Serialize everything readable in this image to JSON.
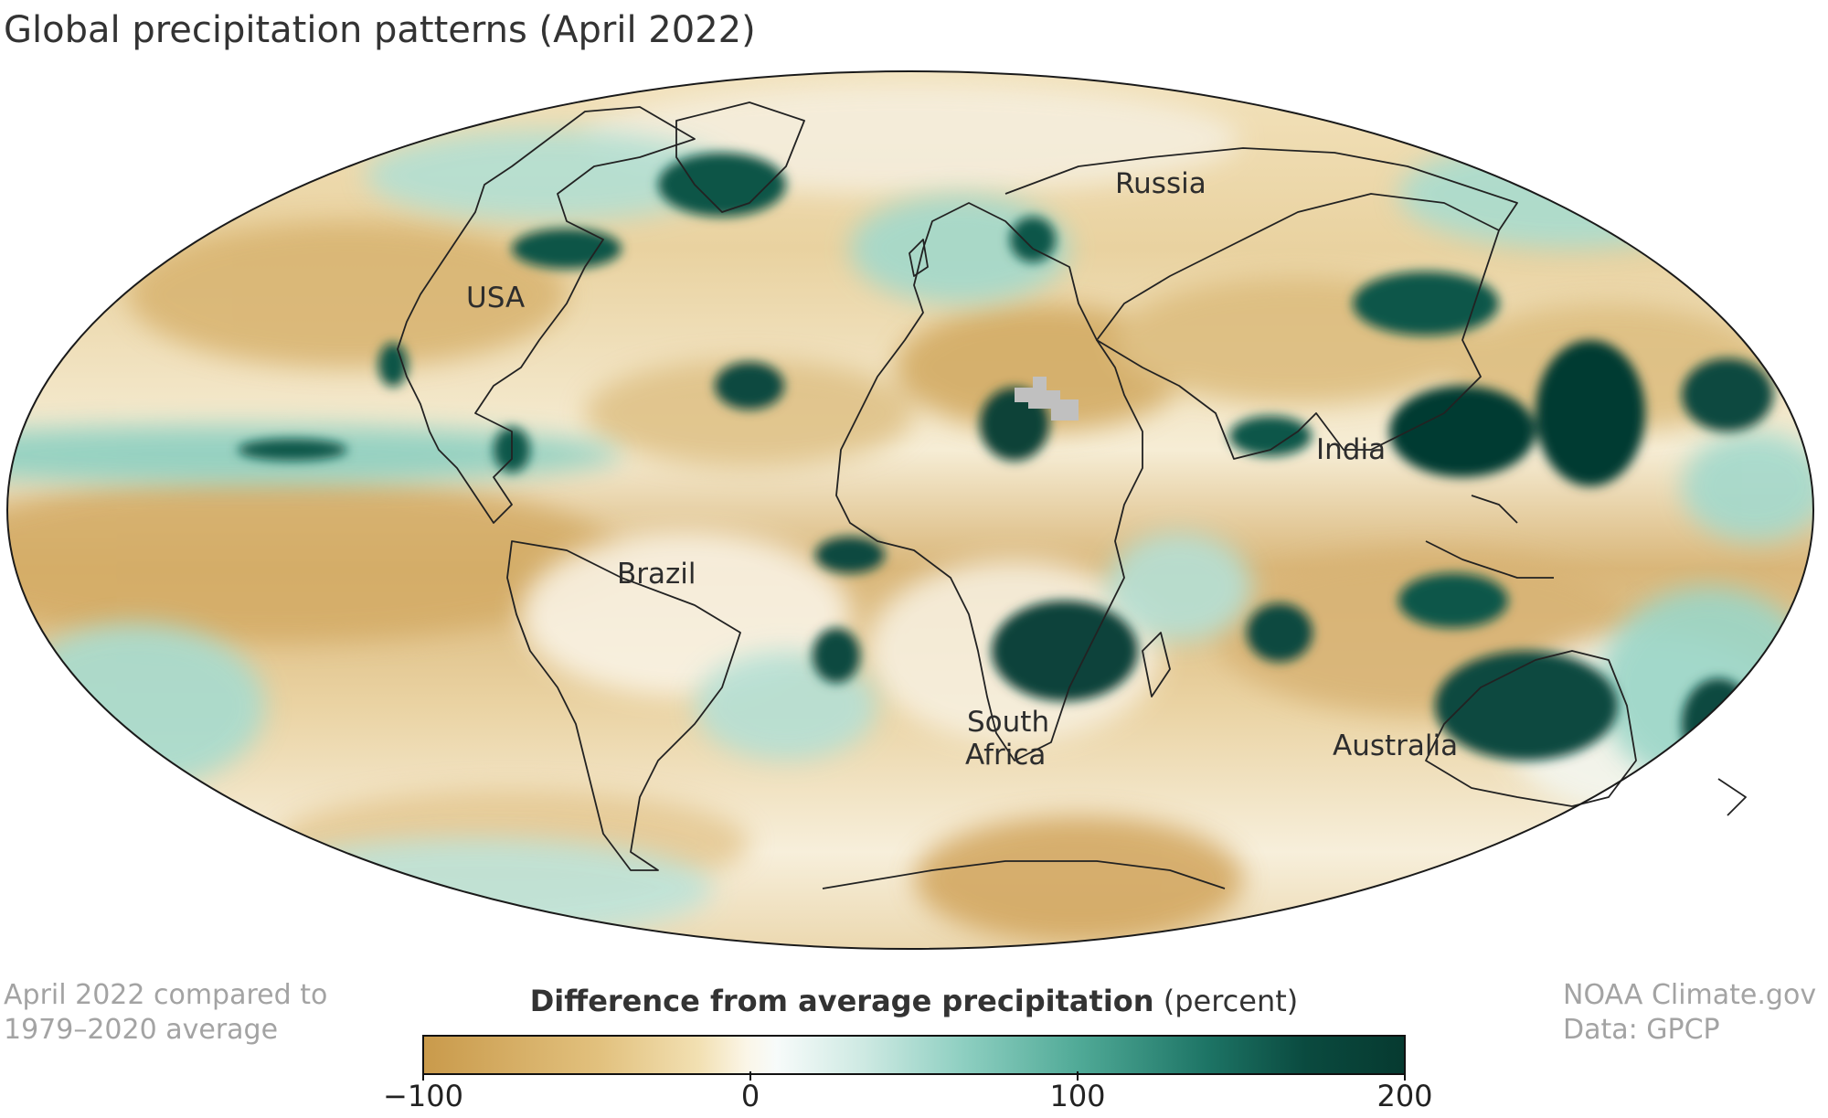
{
  "title": "Global precipitation patterns (April 2022)",
  "map": {
    "projection": "Mollweide",
    "region_labels": [
      "Russia",
      "USA",
      "India",
      "Brazil",
      "South",
      "Africa",
      "Australia"
    ],
    "colors": {
      "dry": "#c99a4b",
      "neutral": "#fbf6e8",
      "wet": "#063a30",
      "no_data": "#c0c0c0",
      "coastline": "#222222"
    }
  },
  "notes": {
    "comparison_line1": "April 2022 compared to",
    "comparison_line2": "1979–2020 average",
    "credit_line1": "NOAA Climate.gov",
    "credit_line2": "Data: GPCP"
  },
  "legend": {
    "title_bold": "Difference from average precipitation",
    "title_unit": "(percent)",
    "min": -100,
    "max": 200,
    "ticks": [
      "−100",
      "0",
      "100",
      "200"
    ],
    "tick_values": [
      -100,
      0,
      100,
      200
    ]
  }
}
